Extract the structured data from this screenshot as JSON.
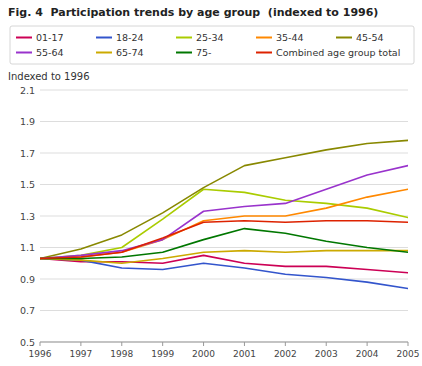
{
  "chart_data": {
    "type": "line",
    "title": "Fig. 4  Participation trends by age group  (indexed to 1996)",
    "y_label": "Indexed to 1996",
    "x": [
      1996,
      1997,
      1998,
      1999,
      2000,
      2001,
      2002,
      2003,
      2004,
      2005
    ],
    "series": [
      {
        "name": "01-17",
        "color": "#cc0055",
        "values": [
          1.03,
          1.01,
          1.01,
          1.0,
          1.05,
          1.0,
          0.98,
          0.98,
          0.96,
          0.94
        ]
      },
      {
        "name": "18-24",
        "color": "#3355cc",
        "values": [
          1.03,
          1.02,
          0.97,
          0.96,
          1.0,
          0.97,
          0.93,
          0.91,
          0.88,
          0.84
        ]
      },
      {
        "name": "25-34",
        "color": "#aacc00",
        "values": [
          1.03,
          1.05,
          1.1,
          1.28,
          1.47,
          1.45,
          1.4,
          1.38,
          1.35,
          1.29
        ]
      },
      {
        "name": "35-44",
        "color": "#ff8800",
        "values": [
          1.03,
          1.04,
          1.07,
          1.15,
          1.27,
          1.3,
          1.3,
          1.35,
          1.42,
          1.47
        ]
      },
      {
        "name": "45-54",
        "color": "#888800",
        "values": [
          1.03,
          1.09,
          1.18,
          1.32,
          1.48,
          1.62,
          1.67,
          1.72,
          1.76,
          1.78
        ]
      },
      {
        "name": "55-64",
        "color": "#9933cc",
        "values": [
          1.03,
          1.05,
          1.08,
          1.15,
          1.33,
          1.36,
          1.38,
          1.47,
          1.56,
          1.62
        ]
      },
      {
        "name": "65-74",
        "color": "#ccaa00",
        "values": [
          1.03,
          1.02,
          1.0,
          1.03,
          1.07,
          1.08,
          1.07,
          1.08,
          1.08,
          1.08
        ]
      },
      {
        "name": "75-",
        "color": "#007700",
        "values": [
          1.03,
          1.03,
          1.04,
          1.07,
          1.15,
          1.22,
          1.19,
          1.14,
          1.1,
          1.07
        ]
      },
      {
        "name": "Combined age group total",
        "color": "#dd2200",
        "values": [
          1.03,
          1.04,
          1.07,
          1.16,
          1.26,
          1.27,
          1.26,
          1.27,
          1.27,
          1.26
        ]
      }
    ],
    "xlim": [
      1996,
      2005
    ],
    "xticks": [
      1996,
      1997,
      1998,
      1999,
      2000,
      2001,
      2002,
      2003,
      2004,
      2005
    ],
    "ylim": [
      0.5,
      2.1
    ],
    "yticks": [
      0.5,
      0.7,
      0.9,
      1.1,
      1.3,
      1.5,
      1.7,
      1.9,
      2.1
    ],
    "grid": true,
    "legend": "top"
  }
}
